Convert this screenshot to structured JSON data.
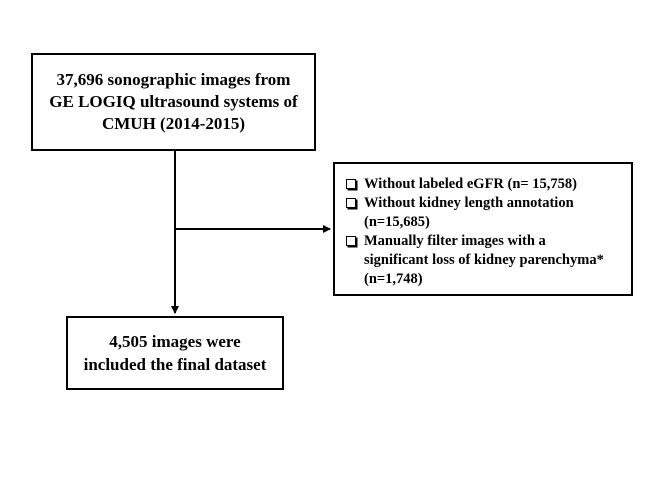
{
  "flowchart": {
    "source_box": {
      "lines": [
        "37,696 sonographic images from",
        "GE LOGIQ ultrasound systems of",
        "CMUH (2014-2015)"
      ]
    },
    "exclusion_box": {
      "criteria": [
        {
          "icon": "checkbox-icon",
          "lines": [
            "Without labeled eGFR (n= 15,758)"
          ]
        },
        {
          "icon": "checkbox-icon",
          "lines": [
            "Without kidney length annotation",
            "(n=15,685)"
          ]
        },
        {
          "icon": "checkbox-icon",
          "lines": [
            "Manually filter images with a",
            "significant loss of kidney parenchyma*",
            "(n=1,748)"
          ]
        }
      ]
    },
    "result_box": {
      "lines": [
        "4,505 images were",
        "included the final dataset"
      ]
    }
  }
}
